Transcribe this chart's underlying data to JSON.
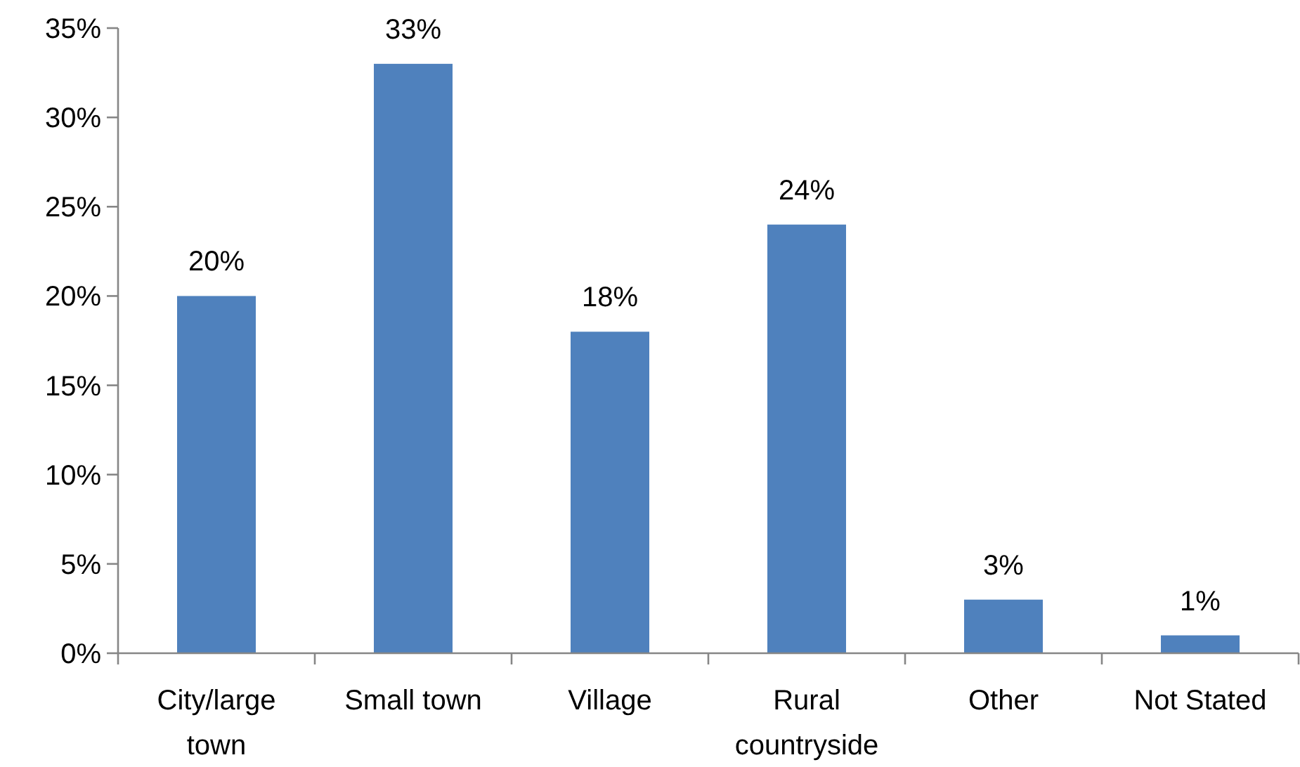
{
  "chart_data": {
    "type": "bar",
    "categories": [
      "City/large town",
      "Small town",
      "Village",
      "Rural countryside",
      "Other",
      "Not Stated"
    ],
    "values": [
      20,
      33,
      18,
      24,
      3,
      1
    ],
    "value_labels": [
      "20%",
      "33%",
      "18%",
      "24%",
      "3%",
      "1%"
    ],
    "color": "#4f81bd",
    "ylim": [
      0,
      35
    ],
    "yticks": [
      {
        "value": 0,
        "label": "0%"
      },
      {
        "value": 5,
        "label": "5%"
      },
      {
        "value": 10,
        "label": "10%"
      },
      {
        "value": 15,
        "label": "15%"
      },
      {
        "value": 20,
        "label": "20%"
      },
      {
        "value": 25,
        "label": "25%"
      },
      {
        "value": 30,
        "label": "30%"
      },
      {
        "value": 35,
        "label": "35%"
      }
    ]
  }
}
